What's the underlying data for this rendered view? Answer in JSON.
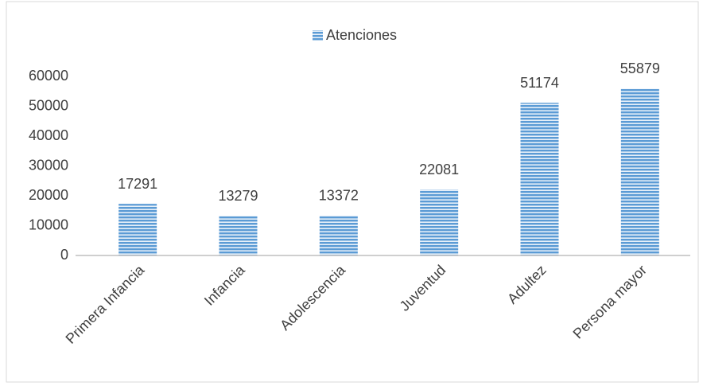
{
  "chart_data": {
    "type": "bar",
    "series": [
      {
        "name": "Atenciones",
        "color": "#5b9bd5",
        "values": [
          17291,
          13279,
          13372,
          22081,
          51174,
          55879
        ]
      }
    ],
    "categories": [
      "Primera Infancia",
      "Infancia",
      "Adolescencia",
      "Juventud",
      "Adultez",
      "Persona mayor"
    ],
    "ylim": [
      0,
      60000
    ],
    "yticks": [
      0,
      10000,
      20000,
      30000,
      40000,
      50000,
      60000
    ],
    "legend": "top",
    "grid": false
  }
}
